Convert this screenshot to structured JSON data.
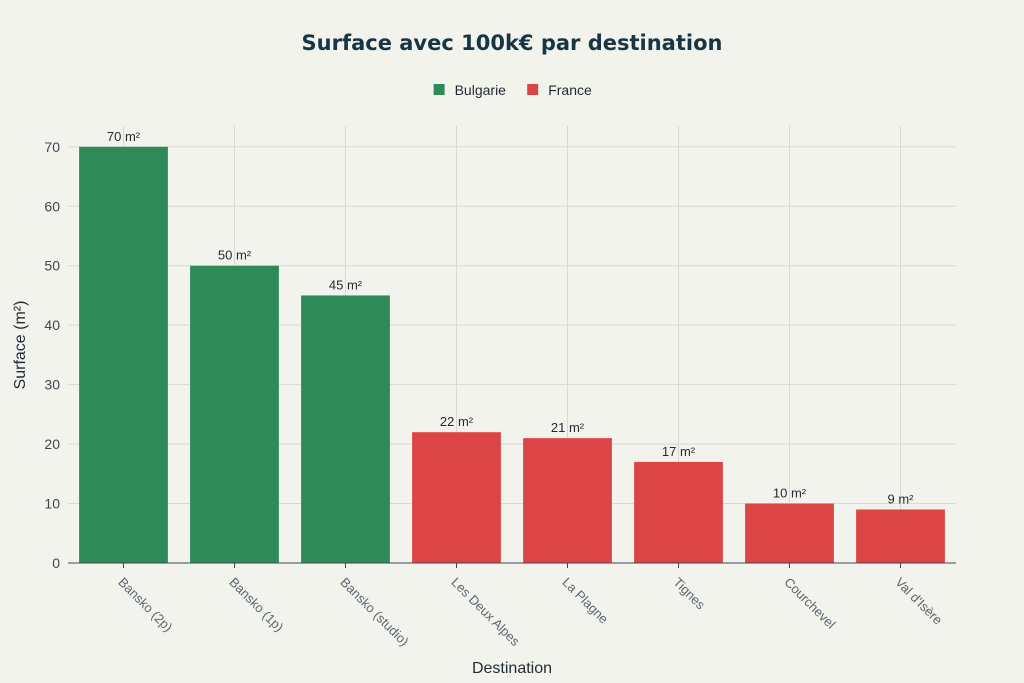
{
  "chart_data": {
    "type": "bar",
    "title": "Surface avec 100k€ par destination",
    "xlabel": "Destination",
    "ylabel": "Surface (m²)",
    "ylim": [
      0,
      73.5
    ],
    "yticks": [
      0,
      10,
      20,
      30,
      40,
      50,
      60,
      70
    ],
    "grid": true,
    "legend_position": "top-center",
    "categories": [
      "Bansko (2p)",
      "Bansko (1p)",
      "Bansko (studio)",
      "Les Deux Alpes",
      "La Plagne",
      "Tignes",
      "Courchevel",
      "Val d'Isère"
    ],
    "values": [
      70,
      50,
      45,
      22,
      21,
      17,
      10,
      9
    ],
    "data_labels": [
      "70 m²",
      "50 m²",
      "45 m²",
      "22 m²",
      "21 m²",
      "17 m²",
      "10 m²",
      "9 m²"
    ],
    "bar_groups": [
      "Bulgarie",
      "Bulgarie",
      "Bulgarie",
      "France",
      "France",
      "France",
      "France",
      "France"
    ],
    "legend": [
      {
        "name": "Bulgarie",
        "color": "#2e8b57"
      },
      {
        "name": "France",
        "color": "#db4545"
      }
    ]
  }
}
